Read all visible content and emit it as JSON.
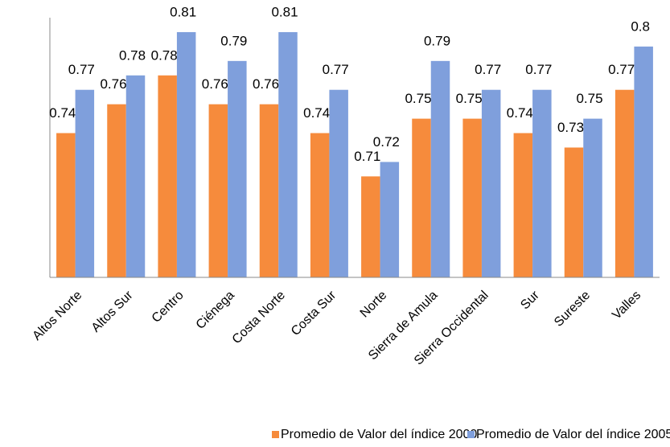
{
  "chart_data": {
    "type": "bar",
    "categories": [
      "Altos Norte",
      "Altos Sur",
      "Centro",
      "Ciénega",
      "Costa Norte",
      "Costa Sur",
      "Norte",
      "Sierra de Amula",
      "Sierra Occidental",
      "Sur",
      "Sureste",
      "Valles"
    ],
    "series": [
      {
        "name": "Promedio de Valor del índice 2000",
        "color": "#f68b3c",
        "values": [
          0.74,
          0.76,
          0.78,
          0.76,
          0.76,
          0.74,
          0.71,
          0.75,
          0.75,
          0.74,
          0.73,
          0.77
        ]
      },
      {
        "name": "Promedio de Valor del índice 2005",
        "color": "#7f9fdc",
        "values": [
          0.77,
          0.78,
          0.81,
          0.79,
          0.81,
          0.77,
          0.72,
          0.79,
          0.77,
          0.77,
          0.75,
          0.8
        ]
      }
    ],
    "ylim": [
      0.64,
      0.82
    ],
    "legend": "bottom"
  }
}
